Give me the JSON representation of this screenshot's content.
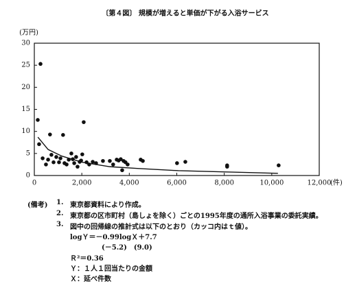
{
  "chart_data": {
    "type": "scatter",
    "title": "〔第４図〕 規模が増えると単価が下がる入浴サービス",
    "y_label": "(万円)",
    "x_label": "(件)",
    "xlim": [
      0,
      12000
    ],
    "ylim": [
      0,
      30
    ],
    "xticks": [
      0,
      {
        "value": 2000,
        "label": "2,000"
      },
      {
        "value": 4000,
        "label": "4,000"
      },
      {
        "value": 6000,
        "label": "6,000"
      },
      {
        "value": 8000,
        "label": "8,000"
      },
      {
        "value": 10000,
        "label": "10,000"
      },
      {
        "value": 12000,
        "label": "12,000"
      }
    ],
    "yticks": [
      0,
      5,
      10,
      15,
      20,
      25,
      30
    ],
    "color": "#111111",
    "x": [
      145,
      260,
      200,
      350,
      490,
      580,
      660,
      720,
      810,
      925,
      1040,
      1100,
      1210,
      1270,
      1360,
      1450,
      1560,
      1620,
      1680,
      1760,
      1820,
      1910,
      1970,
      2020,
      2080,
      2200,
      2310,
      2460,
      2600,
      2890,
      3180,
      3320,
      3470,
      3550,
      3640,
      3700,
      3760,
      3840,
      3930,
      4480,
      4570,
      6010,
      6360,
      8120,
      8120,
      10290
    ],
    "values": [
      12.6,
      25.3,
      7.1,
      3.9,
      2.5,
      3.6,
      9.3,
      4.7,
      3.0,
      4.2,
      3.0,
      3.9,
      9.2,
      2.8,
      2.5,
      3.6,
      5.0,
      3.7,
      2.8,
      4.2,
      2.0,
      3.1,
      3.4,
      4.8,
      12.1,
      3.0,
      2.5,
      3.1,
      2.8,
      3.3,
      3.3,
      2.5,
      3.6,
      3.4,
      3.7,
      1.2,
      3.3,
      3.0,
      2.5,
      3.6,
      3.3,
      2.8,
      3.1,
      2.3,
      2.0,
      2.3
    ],
    "curve": {
      "x": [
        150,
        580,
        1160,
        2020,
        3180,
        4340,
        6070,
        8090,
        10260
      ],
      "values": [
        8.7,
        5.9,
        4.4,
        3.0,
        2.0,
        1.6,
        1.1,
        0.8,
        0.5
      ]
    }
  },
  "notes": {
    "label": "(備考)",
    "items": [
      {
        "number": "1.",
        "text": "東京都資料により作成。"
      },
      {
        "number": "2.",
        "text": "東京都の区市町村（島しょを除く）ごとの1995年度の通所入浴事業の委託実績。"
      },
      {
        "number": "3.",
        "text": "図中の回帰線の推計式は以下のとおり（カッコ内はｔ値）。"
      }
    ],
    "formula": [
      "logＹ＝－0.99logＸ＋7.7",
      "(－5.2)　(9.0)",
      "Ｒ²＝0.36",
      "Ｙ：１人１回当たりの金額",
      "Ｘ：延べ件数"
    ]
  }
}
